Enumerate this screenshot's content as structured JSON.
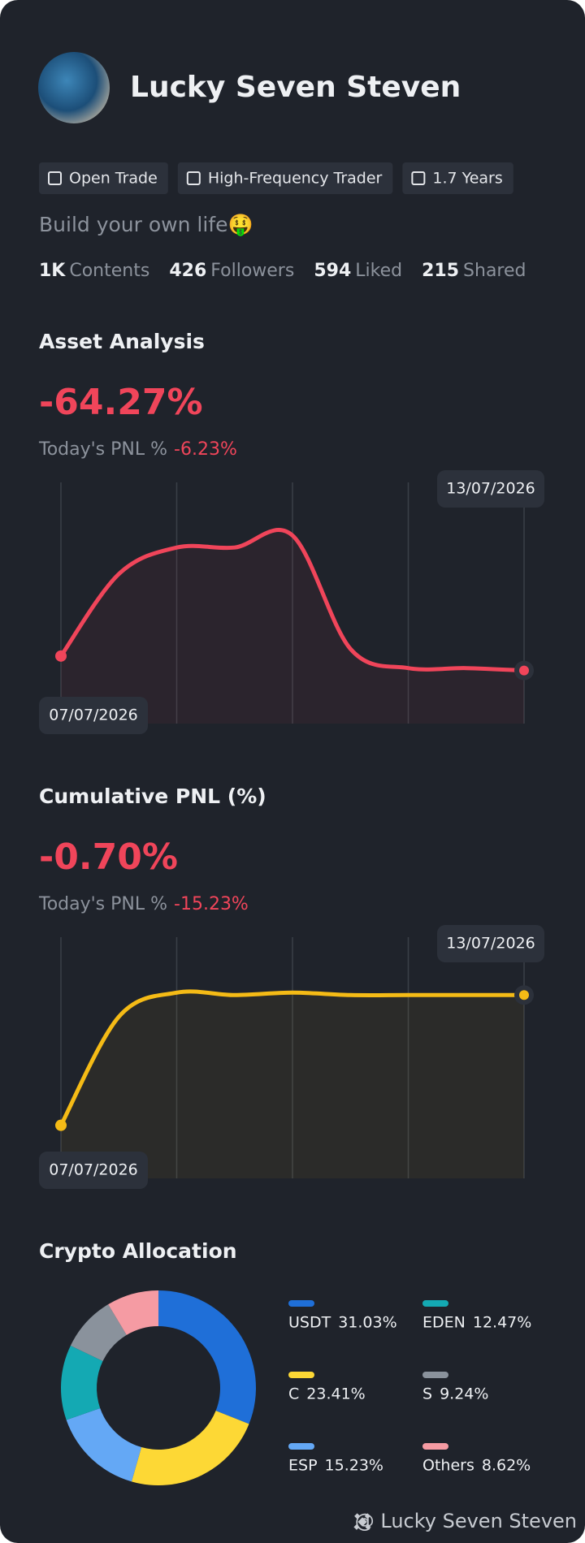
{
  "profile": {
    "name": "Lucky Seven Steven",
    "tags": [
      "Open Trade",
      "High-Frequency Trader",
      "1.7 Years"
    ],
    "bio": "Build your own life🤑",
    "stats": [
      {
        "value": "1K",
        "label": "Contents"
      },
      {
        "value": "426",
        "label": "Followers"
      },
      {
        "value": "594",
        "label": "Liked"
      },
      {
        "value": "215",
        "label": "Shared"
      }
    ]
  },
  "charts": [
    {
      "title": "Asset Analysis",
      "value": "-64.27%",
      "today_label": "Today's PNL %",
      "today_value": "-6.23%",
      "start_date": "07/07/2026",
      "end_date": "13/07/2026",
      "color": "#f0455a",
      "values": [
        28,
        62,
        73,
        73,
        78,
        31,
        23,
        23,
        22
      ],
      "ylim": [
        0,
        100
      ]
    },
    {
      "title": "Cumulative PNL (%)",
      "value": "-0.70%",
      "today_label": "Today's PNL %",
      "today_value": "-15.23%",
      "start_date": "07/07/2026",
      "end_date": "13/07/2026",
      "color": "#f5bb16",
      "values": [
        22,
        67,
        77,
        76,
        77,
        76,
        76,
        76,
        76
      ],
      "ylim": [
        0,
        100
      ]
    }
  ],
  "allocation": {
    "title": "Crypto Allocation",
    "items": [
      {
        "name": "USDT",
        "value": 31.03,
        "label": "31.03%",
        "color": "#1f6fd8"
      },
      {
        "name": "C",
        "value": 23.41,
        "label": "23.41%",
        "color": "#fdd835"
      },
      {
        "name": "ESP",
        "value": 15.23,
        "label": "15.23%",
        "color": "#64a8f5"
      },
      {
        "name": "EDEN",
        "value": 12.47,
        "label": "12.47%",
        "color": "#14a9b3"
      },
      {
        "name": "S",
        "value": 9.24,
        "label": "9.24%",
        "color": "#8a929c"
      },
      {
        "name": "Others",
        "value": 8.62,
        "label": "8.62%",
        "color": "#f59ba3"
      }
    ]
  },
  "footer": "@ Lucky Seven Steven"
}
